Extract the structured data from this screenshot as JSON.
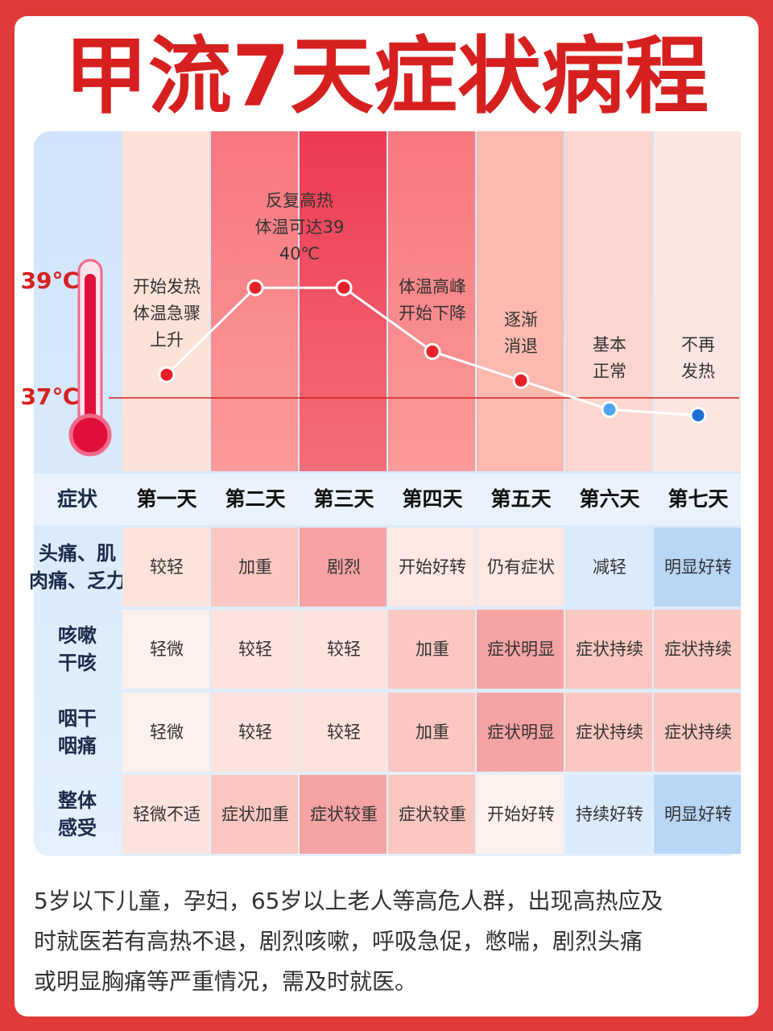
{
  "title": "甲流7天症状病程",
  "temperature": {
    "ticks": [
      {
        "value": 39,
        "label": "39℃"
      },
      {
        "value": 37,
        "label": "37℃"
      }
    ],
    "values": [
      37.4,
      38.9,
      38.9,
      37.8,
      37.3,
      36.8,
      36.7
    ]
  },
  "annotations": [
    [
      "开始发热",
      "体温急骤",
      "上升"
    ],
    [
      "反复高热",
      "体温可达39",
      "40℃"
    ],
    [
      "体温高峰",
      "开始下降"
    ],
    [
      "逐渐",
      "消退"
    ],
    [
      "基本",
      "正常"
    ],
    [
      "不再",
      "发热"
    ]
  ],
  "table": {
    "header": [
      "症状",
      "第一天",
      "第二天",
      "第三天",
      "第四天",
      "第五天",
      "第六天",
      "第七天"
    ],
    "rows": [
      [
        [
          "头痛、肌",
          "肉痛、乏力"
        ],
        "较轻",
        "加重",
        "剧烈",
        "开始好转",
        "仍有症状",
        "减轻",
        "明显好转"
      ],
      [
        [
          "咳嗽",
          "干咳"
        ],
        "轻微",
        "较轻",
        "较轻",
        "加重",
        "症状明显",
        "症状持续",
        "症状持续"
      ],
      [
        [
          "咽干",
          "咽痛"
        ],
        "轻微",
        "较轻",
        "较轻",
        "加重",
        "症状明显",
        "症状持续",
        "症状持续"
      ],
      [
        [
          "整体",
          "感受"
        ],
        "轻微不适",
        "症状加重",
        "症状较重",
        "症状较重",
        "开始好转",
        "持续好转",
        "明显好转"
      ]
    ]
  },
  "note": [
    "5岁以下儿童，孕妇，65岁以上老人等高危人群，出现高热应及",
    "时就医若有高热不退，剧烈咳嗽，呼吸急促，憋喘，剧烈头痛",
    "或明显胸痛等严重情况，需及时就医。"
  ]
}
